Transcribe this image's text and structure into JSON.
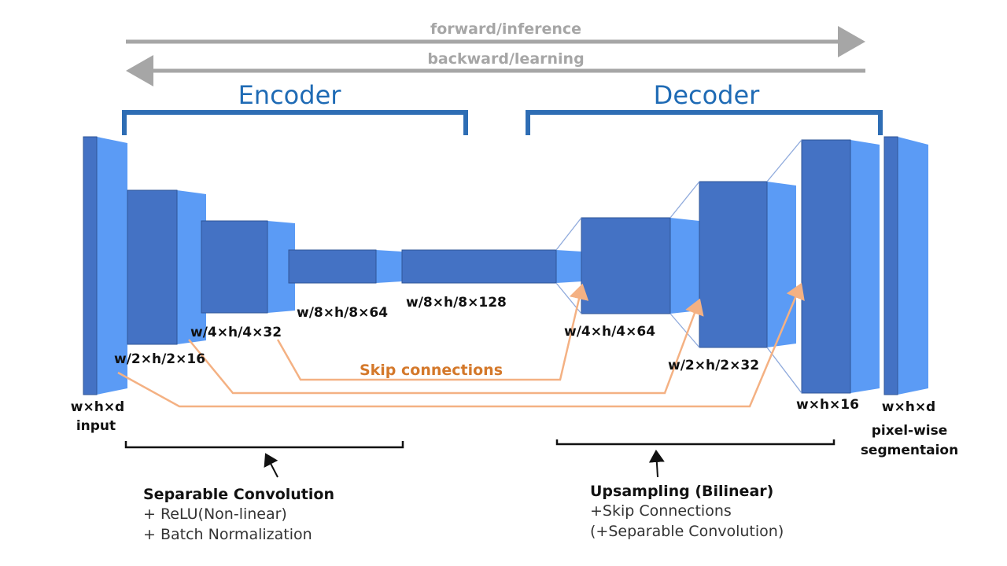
{
  "arrows": {
    "forward_label": "forward/inference",
    "backward_label": "backward/learning"
  },
  "sections": {
    "encoder": "Encoder",
    "decoder": "Decoder"
  },
  "dimensions": {
    "input": "w×h×d",
    "input_caption": "input",
    "enc1": "w/2×h/2×16",
    "enc2": "w/4×h/4×32",
    "enc3": "w/8×h/8×64",
    "bottleneck": "w/8×h/8×128",
    "dec1": "w/4×h/4×64",
    "dec2": "w/2×h/2×32",
    "dec3": "w×h×16",
    "output": "w×h×d",
    "output_caption_1": "pixel-wise",
    "output_caption_2": "segmentaion"
  },
  "skip_label": "Skip connections",
  "encoder_note": {
    "title": "Separable Convolution",
    "line1": "+ ReLU(Non-linear)",
    "line2": "+ Batch Normalization"
  },
  "decoder_note": {
    "title": "Upsampling (Bilinear)",
    "line1": "+Skip Connections",
    "line2": "(+Separable Convolution)"
  },
  "colors": {
    "block_front": "#4472c4",
    "block_side": "#5b9bf5",
    "title": "#1f6bb5",
    "skip": "#f4b183",
    "arrow": "#a6a6a6"
  }
}
